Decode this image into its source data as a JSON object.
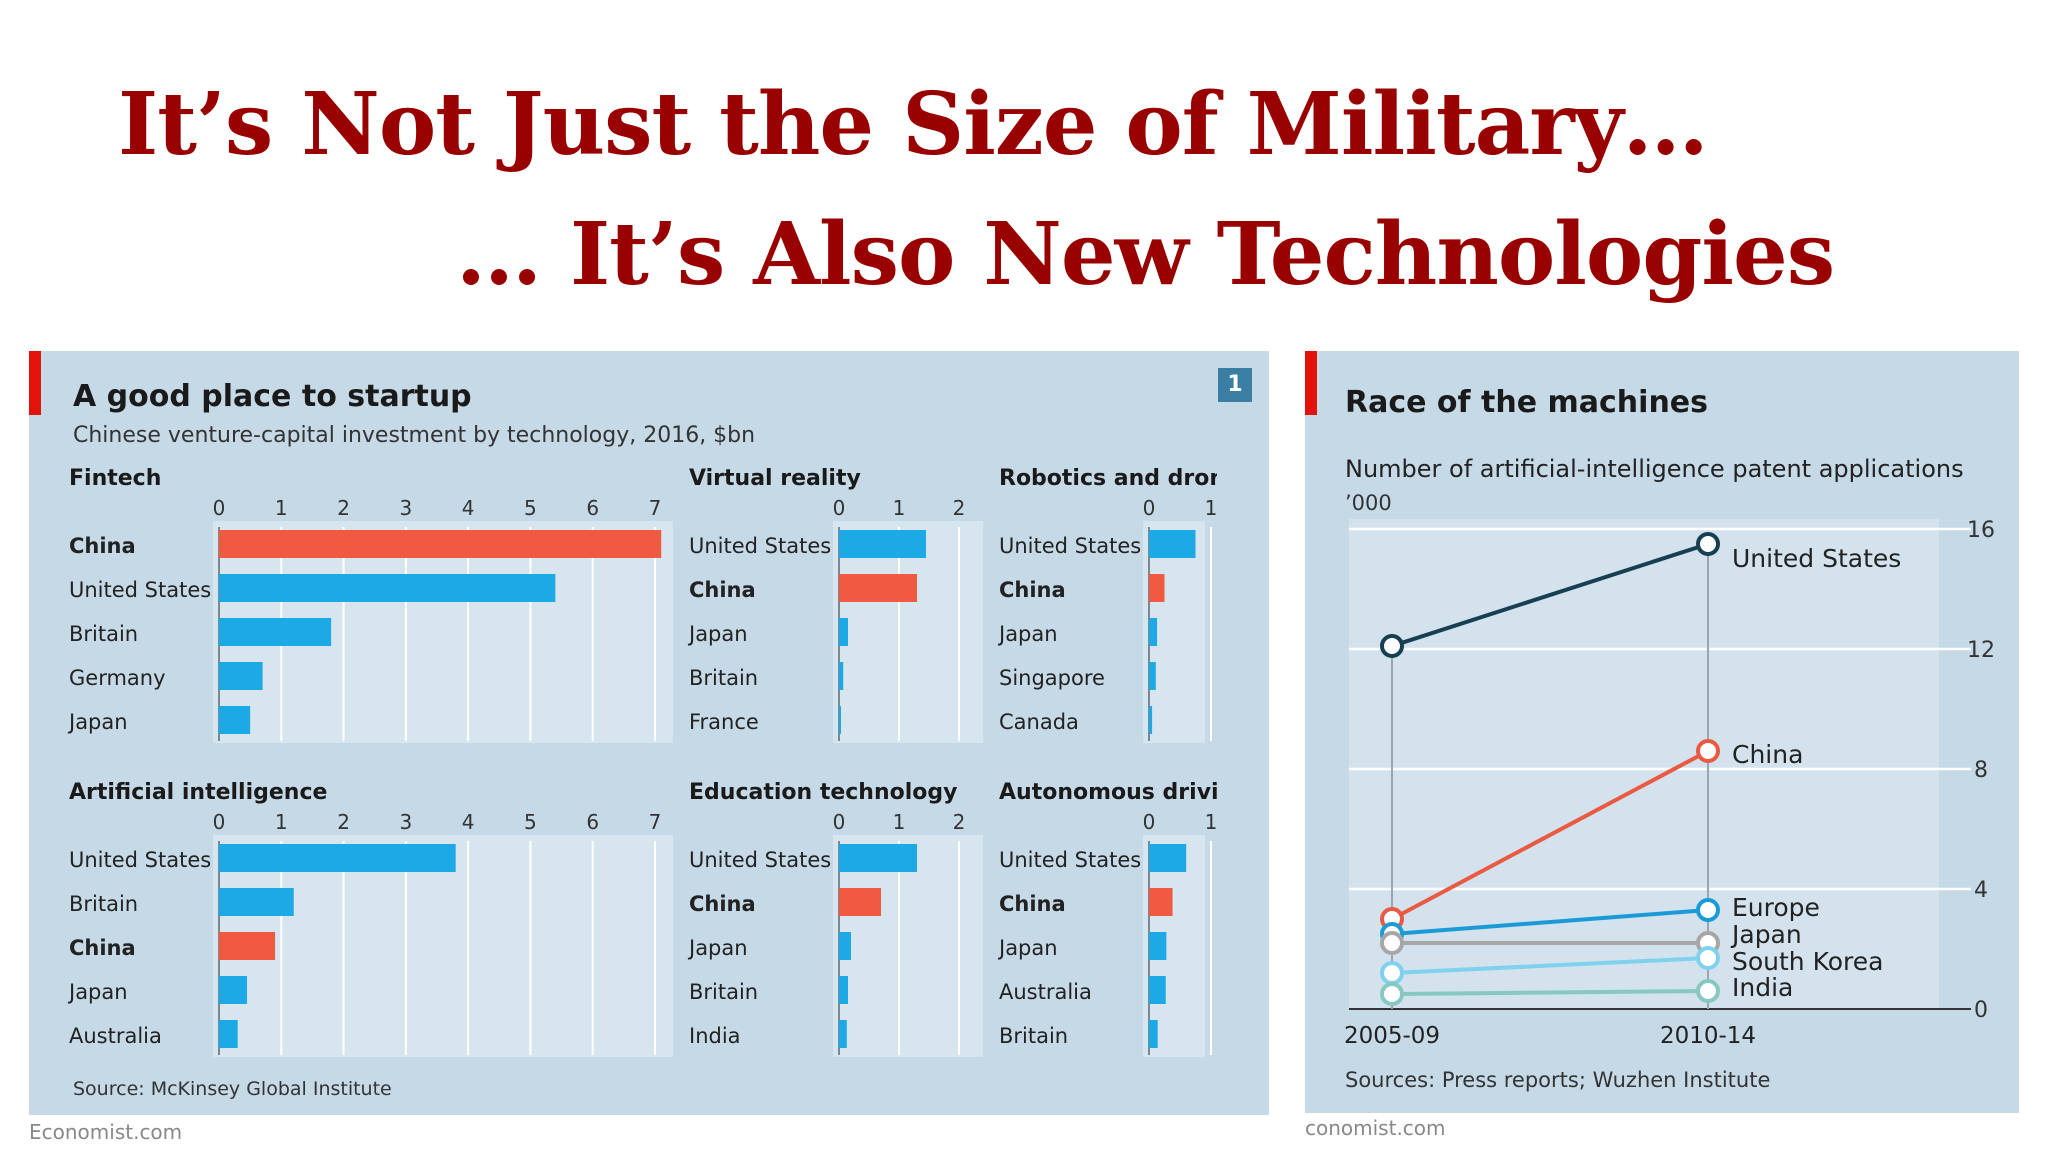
{
  "slide": {
    "title_line1": "It’s Not Just the Size of Military…",
    "title_line2": "… It’s Also New Technologies"
  },
  "colors": {
    "blue": "#1ca9e6",
    "red": "#f05a40",
    "panel": "#c6d9e7",
    "title": "#990000",
    "us_line": "#163f52",
    "china_line": "#ea5a42",
    "europe_line": "#1a9bd7",
    "japan_line": "#a6a6a6",
    "korea_line": "#7fd1ee",
    "india_line": "#86c8c2"
  },
  "left_panel": {
    "title": "A good place to startup",
    "subtitle": "Chinese venture-capital investment by technology, 2016, $bn",
    "badge": "1",
    "source": "Source: McKinsey Global Institute",
    "credit": "Economist.com"
  },
  "right_panel": {
    "title": "Race of the machines",
    "subtitle": "Number of artificial-intelligence patent applications",
    "unit": "’000",
    "source": "Sources: Press reports; Wuzhen Institute",
    "credit": "conomist.com"
  },
  "chart_data": [
    {
      "type": "bar",
      "orientation": "horizontal",
      "title": "Fintech",
      "xlim": [
        0,
        7
      ],
      "ticks": [
        0,
        1,
        2,
        3,
        4,
        5,
        6,
        7
      ],
      "categories": [
        "China",
        "United States",
        "Britain",
        "Germany",
        "Japan"
      ],
      "values": [
        7.1,
        5.4,
        1.8,
        0.7,
        0.5
      ],
      "highlight": "China"
    },
    {
      "type": "bar",
      "orientation": "horizontal",
      "title": "Virtual reality",
      "xlim": [
        0,
        2
      ],
      "ticks": [
        0,
        1,
        2
      ],
      "categories": [
        "United States",
        "China",
        "Japan",
        "Britain",
        "France"
      ],
      "values": [
        1.45,
        1.3,
        0.15,
        0.07,
        0.02
      ],
      "highlight": "China"
    },
    {
      "type": "bar",
      "orientation": "horizontal",
      "title": "Robotics and drones",
      "xlim": [
        0,
        1
      ],
      "ticks": [
        0,
        1
      ],
      "categories": [
        "United States",
        "China",
        "Japan",
        "Singapore",
        "Canada"
      ],
      "values": [
        0.75,
        0.25,
        0.13,
        0.11,
        0.05
      ],
      "highlight": "China"
    },
    {
      "type": "bar",
      "orientation": "horizontal",
      "title": "Artificial intelligence",
      "xlim": [
        0,
        7
      ],
      "ticks": [
        0,
        1,
        2,
        3,
        4,
        5,
        6,
        7
      ],
      "categories": [
        "United States",
        "Britain",
        "China",
        "Japan",
        "Australia"
      ],
      "values": [
        3.8,
        1.2,
        0.9,
        0.45,
        0.3
      ],
      "highlight": "China"
    },
    {
      "type": "bar",
      "orientation": "horizontal",
      "title": "Education technology",
      "xlim": [
        0,
        2
      ],
      "ticks": [
        0,
        1,
        2
      ],
      "categories": [
        "United States",
        "China",
        "Japan",
        "Britain",
        "India"
      ],
      "values": [
        1.3,
        0.7,
        0.2,
        0.15,
        0.13
      ],
      "highlight": "China"
    },
    {
      "type": "bar",
      "orientation": "horizontal",
      "title": "Autonomous driving",
      "xlim": [
        0,
        1
      ],
      "ticks": [
        0,
        1
      ],
      "categories": [
        "United States",
        "China",
        "Japan",
        "Australia",
        "Britain"
      ],
      "values": [
        0.6,
        0.38,
        0.28,
        0.27,
        0.14
      ],
      "highlight": "China"
    },
    {
      "type": "line",
      "title": "Race of the machines",
      "x": [
        "2005-09",
        "2010-14"
      ],
      "ylim": [
        0,
        16
      ],
      "yticks": [
        0,
        4,
        8,
        12,
        16
      ],
      "y_axis_side": "right",
      "series": [
        {
          "name": "United States",
          "values": [
            12.1,
            15.5
          ]
        },
        {
          "name": "China",
          "values": [
            3.0,
            8.6
          ]
        },
        {
          "name": "Europe",
          "values": [
            2.5,
            3.3
          ]
        },
        {
          "name": "Japan",
          "values": [
            2.2,
            2.2
          ]
        },
        {
          "name": "South Korea",
          "values": [
            1.2,
            1.7
          ]
        },
        {
          "name": "India",
          "values": [
            0.5,
            0.6
          ]
        }
      ]
    }
  ]
}
